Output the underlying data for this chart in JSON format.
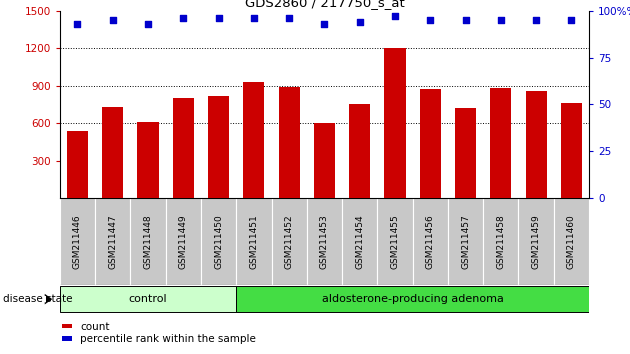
{
  "title": "GDS2860 / 217750_s_at",
  "samples": [
    "GSM211446",
    "GSM211447",
    "GSM211448",
    "GSM211449",
    "GSM211450",
    "GSM211451",
    "GSM211452",
    "GSM211453",
    "GSM211454",
    "GSM211455",
    "GSM211456",
    "GSM211457",
    "GSM211458",
    "GSM211459",
    "GSM211460"
  ],
  "counts": [
    540,
    730,
    610,
    800,
    820,
    930,
    890,
    600,
    750,
    1200,
    870,
    720,
    880,
    860,
    760
  ],
  "percentile": [
    93,
    95,
    93,
    96,
    96,
    96,
    96,
    93,
    94,
    97,
    95,
    95,
    95,
    95,
    95
  ],
  "bar_color": "#cc0000",
  "dot_color": "#0000cc",
  "ylim_left": [
    0,
    1500
  ],
  "ylim_right": [
    0,
    100
  ],
  "yticks_left": [
    300,
    600,
    900,
    1200,
    1500
  ],
  "yticks_right": [
    0,
    25,
    50,
    75,
    100
  ],
  "grid_lines": [
    600,
    900,
    1200
  ],
  "control_count": 5,
  "adenoma_count": 10,
  "group_labels": [
    "control",
    "aldosterone-producing adenoma"
  ],
  "ctrl_color": "#ccffcc",
  "aden_color": "#44dd44",
  "disease_label": "disease state",
  "legend_count_label": "count",
  "legend_percentile_label": "percentile rank within the sample",
  "bar_color_red": "#cc0000",
  "dot_color_blue": "#0000cc",
  "xlabel_color": "#cc0000",
  "ylabel_right_color": "#0000cc",
  "tick_bg_color": "#c8c8c8"
}
